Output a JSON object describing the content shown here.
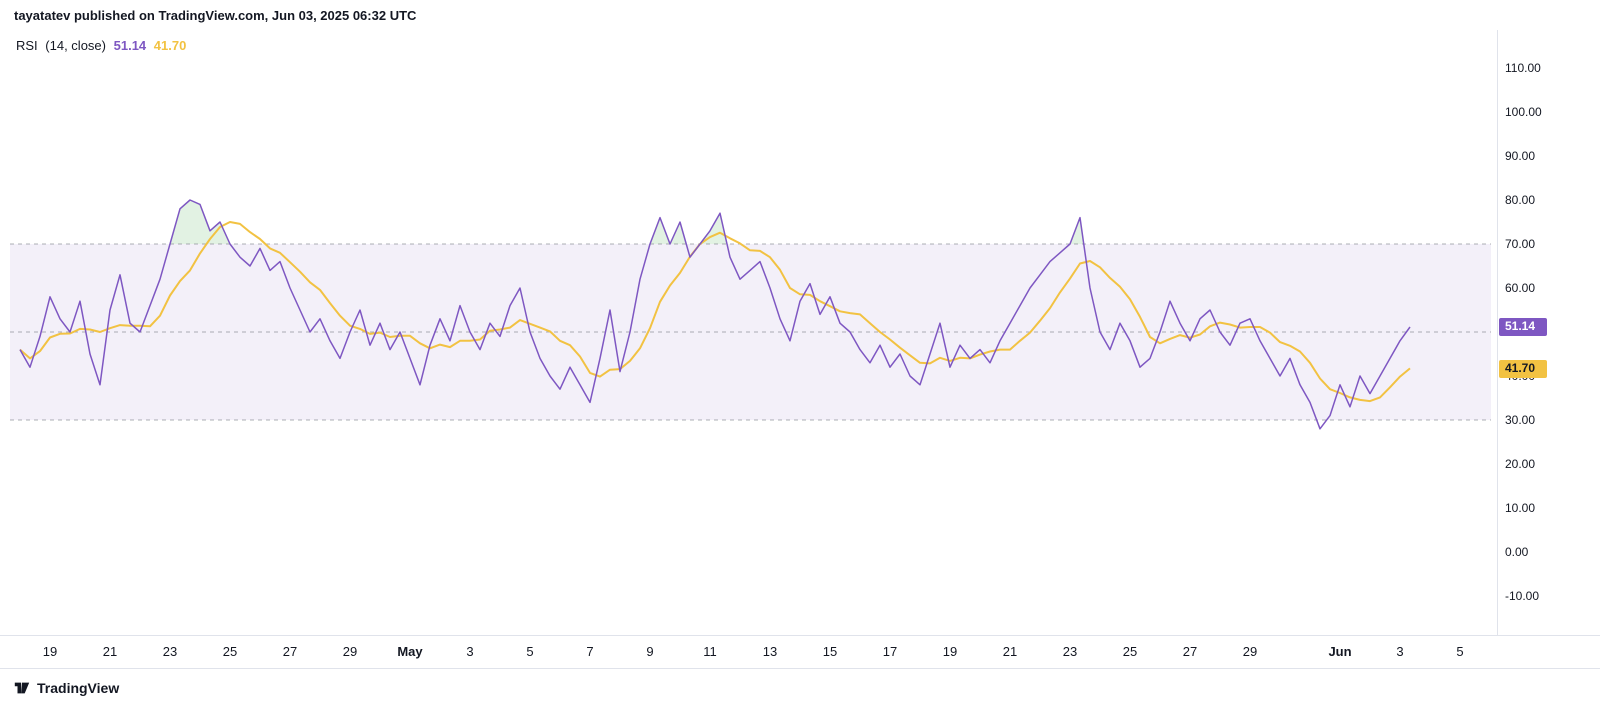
{
  "header": {
    "text": "tayatatev published on TradingView.com, Jun 03, 2025 06:32 UTC"
  },
  "legend": {
    "title": "RSI",
    "params": "(14, close)",
    "rsi_value": "51.14",
    "ma_value": "41.70"
  },
  "footer": {
    "brand": "TradingView"
  },
  "colors": {
    "rsi": "#7E57C2",
    "ma": "#F2C242",
    "band_fill": "#7E57C2",
    "overbought_fill": "#4CAF50",
    "dashed": "#787B86",
    "axis_text": "#131722",
    "badge_rsi_text": "#FFFFFF",
    "badge_ma_text": "#131722"
  },
  "axis": {
    "y_ticks": [
      {
        "v": 110,
        "label": "110.00"
      },
      {
        "v": 100,
        "label": "100.00"
      },
      {
        "v": 90,
        "label": "90.00"
      },
      {
        "v": 80,
        "label": "80.00"
      },
      {
        "v": 70,
        "label": "70.00"
      },
      {
        "v": 60,
        "label": "60.00"
      },
      {
        "v": 50,
        "label": "50.00"
      },
      {
        "v": 40,
        "label": "40.00"
      },
      {
        "v": 30,
        "label": "30.00"
      },
      {
        "v": 20,
        "label": "20.00"
      },
      {
        "v": 10,
        "label": "10.00"
      },
      {
        "v": 0,
        "label": "0.00"
      },
      {
        "v": -10,
        "label": "-10.00"
      }
    ],
    "badges": [
      {
        "v": 51.14,
        "label": "51.14",
        "type": "rsi"
      },
      {
        "v": 41.7,
        "label": "41.70",
        "type": "ma"
      }
    ],
    "x_ticks": [
      {
        "label": "19",
        "day": 1
      },
      {
        "label": "21",
        "day": 3
      },
      {
        "label": "23",
        "day": 5
      },
      {
        "label": "25",
        "day": 7
      },
      {
        "label": "27",
        "day": 9
      },
      {
        "label": "29",
        "day": 11
      },
      {
        "label": "May",
        "day": 13,
        "bold": true
      },
      {
        "label": "3",
        "day": 15
      },
      {
        "label": "5",
        "day": 17
      },
      {
        "label": "7",
        "day": 19
      },
      {
        "label": "9",
        "day": 21
      },
      {
        "label": "11",
        "day": 23
      },
      {
        "label": "13",
        "day": 25
      },
      {
        "label": "15",
        "day": 27
      },
      {
        "label": "17",
        "day": 29
      },
      {
        "label": "19",
        "day": 31
      },
      {
        "label": "21",
        "day": 33
      },
      {
        "label": "23",
        "day": 35
      },
      {
        "label": "25",
        "day": 37
      },
      {
        "label": "27",
        "day": 39
      },
      {
        "label": "29",
        "day": 41
      },
      {
        "label": "Jun",
        "day": 44,
        "bold": true
      },
      {
        "label": "3",
        "day": 46
      },
      {
        "label": "5",
        "day": 48
      }
    ]
  },
  "chart_data": {
    "type": "line",
    "title": "RSI (14, close)",
    "x_start": "Apr 18",
    "x_end": "Jun 3",
    "points_per_day": 3,
    "ylim": [
      -18,
      118
    ],
    "band": [
      30,
      70
    ],
    "hlines": [
      70,
      50,
      30
    ],
    "series": [
      {
        "name": "RSI",
        "color": "#7E57C2",
        "last": 51.14,
        "values": [
          46,
          42,
          49,
          58,
          53,
          50,
          57,
          45,
          38,
          55,
          63,
          52,
          50,
          56,
          62,
          70,
          78,
          80,
          79,
          73,
          75,
          70,
          67,
          65,
          69,
          64,
          66,
          60,
          55,
          50,
          53,
          48,
          44,
          50,
          55,
          47,
          52,
          46,
          50,
          44,
          38,
          47,
          53,
          48,
          56,
          50,
          46,
          52,
          49,
          56,
          60,
          50,
          44,
          40,
          37,
          42,
          38,
          34,
          44,
          55,
          41,
          50,
          62,
          70,
          76,
          70,
          75,
          67,
          70,
          73,
          77,
          67,
          62,
          64,
          66,
          60,
          53,
          48,
          57,
          61,
          54,
          58,
          52,
          50,
          46,
          43,
          47,
          42,
          45,
          40,
          38,
          45,
          52,
          42,
          47,
          44,
          46,
          43,
          48,
          52,
          56,
          60,
          63,
          66,
          68,
          70,
          76,
          60,
          50,
          46,
          52,
          48,
          42,
          44,
          50,
          57,
          52,
          48,
          53,
          55,
          50,
          47,
          52,
          53,
          48,
          44,
          40,
          44,
          38,
          34,
          28,
          31,
          38,
          33,
          40,
          36,
          40,
          44,
          48,
          51.14
        ]
      },
      {
        "name": "RSI-based MA",
        "color": "#F2C242",
        "derived": "SMA of RSI",
        "sma_window": 7,
        "last": 41.7
      }
    ]
  }
}
